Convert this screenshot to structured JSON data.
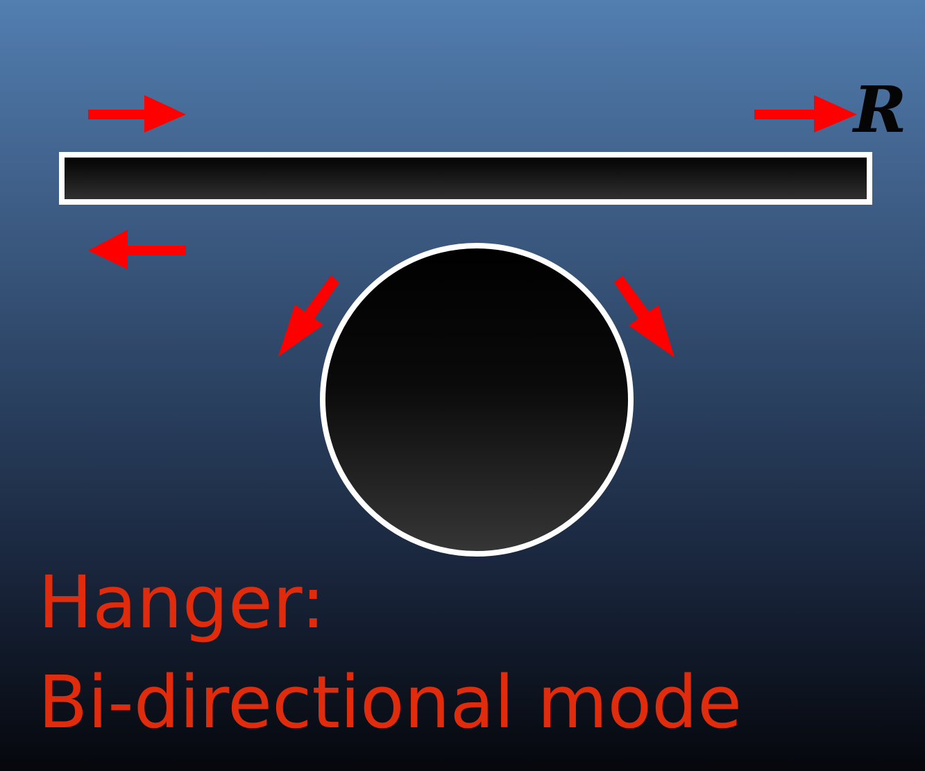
{
  "caption": {
    "line1": "Hanger:",
    "line2": "Bi-directional mode"
  },
  "label_r": "R",
  "colors": {
    "arrow": "#ff0000",
    "caption": "#e02c0c",
    "bar_outline": "#ffffff",
    "ring_outline": "#ffffff",
    "background_top": "#527eb0",
    "background_bottom": "#05070c"
  },
  "icons": [
    "arrow-right-icon",
    "arrow-left-icon",
    "arrow-down-left-icon",
    "arrow-down-right-icon"
  ]
}
